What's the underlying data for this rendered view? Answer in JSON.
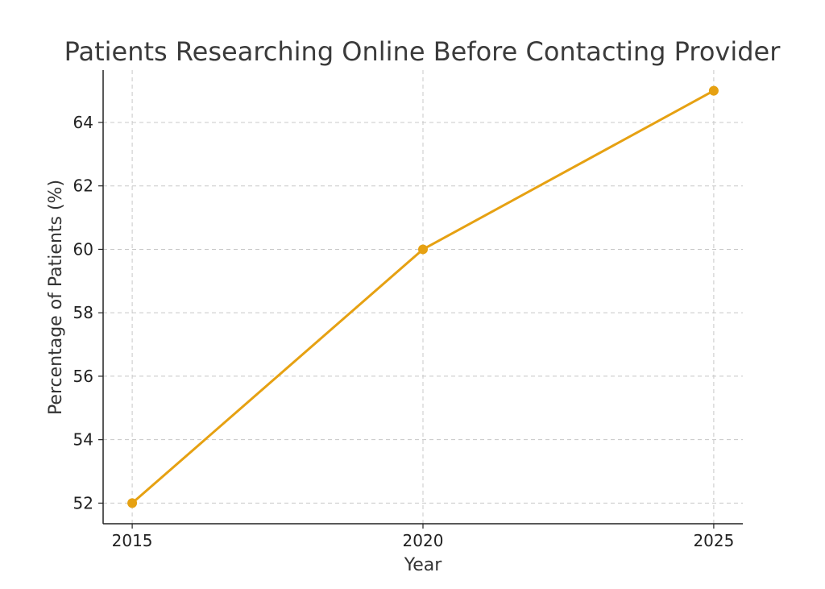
{
  "chart_data": {
    "type": "line",
    "title": "Patients Researching Online Before Contacting Provider",
    "xlabel": "Year",
    "ylabel": "Percentage of Patients (%)",
    "x": [
      2015,
      2020,
      2025
    ],
    "x_ticks": [
      "2015",
      "2020",
      "2025"
    ],
    "y_ticks": [
      52,
      54,
      56,
      58,
      60,
      62,
      64
    ],
    "xlim": [
      2014.5,
      2025.5
    ],
    "ylim": [
      51.35,
      65.65
    ],
    "grid": true,
    "series": [
      {
        "values": [
          52,
          60,
          65
        ],
        "color": "#e6a112",
        "marker": "circle"
      }
    ]
  }
}
